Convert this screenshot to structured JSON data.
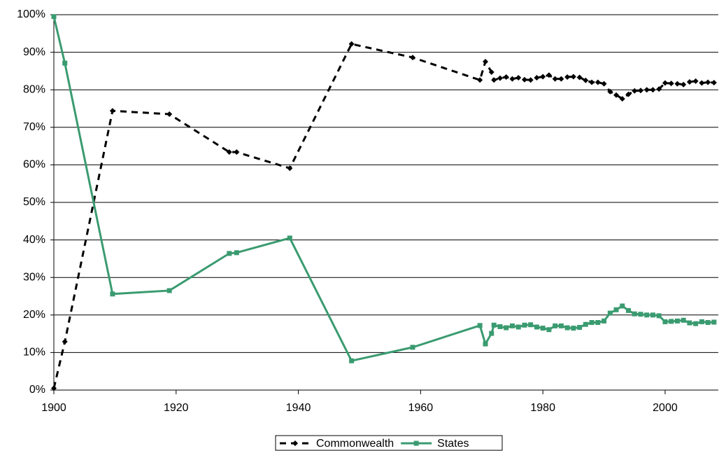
{
  "chart_data": {
    "type": "line",
    "x": [
      1900,
      1901.8,
      1909.6,
      1918.9,
      1928.7,
      1929.9,
      1938.6,
      1948.7,
      1958.7,
      1969.7,
      1970.6,
      1971.6,
      1972,
      1973,
      1974,
      1975,
      1976,
      1977,
      1978,
      1979,
      1980,
      1981,
      1982,
      1983,
      1984,
      1985,
      1986,
      1987,
      1988,
      1989,
      1990,
      1991,
      1992,
      1993,
      1994,
      1995,
      1996,
      1997,
      1998,
      1999,
      2000,
      2001,
      2002,
      2003,
      2004,
      2005,
      2006,
      2007,
      2008
    ],
    "series": [
      {
        "name": "Commonwealth",
        "color": "#000000",
        "line_style": "dashed",
        "marker": "diamond",
        "values": [
          0.5,
          12.9,
          74.4,
          73.5,
          63.4,
          63.4,
          59.1,
          92.2,
          88.6,
          82.6,
          87.5,
          84.7,
          82.6,
          83.1,
          83.4,
          82.9,
          83.2,
          82.7,
          82.6,
          83.2,
          83.5,
          83.9,
          82.9,
          82.9,
          83.4,
          83.5,
          83.3,
          82.5,
          82.0,
          82.0,
          81.6,
          79.5,
          78.6,
          77.6,
          78.8,
          79.7,
          79.8,
          80.0,
          80.0,
          80.2,
          81.8,
          81.7,
          81.6,
          81.4,
          82.1,
          82.3,
          81.8,
          82.0,
          81.9
        ]
      },
      {
        "name": "States",
        "color": "#3a9b70",
        "line_style": "solid",
        "marker": "square",
        "values": [
          99.5,
          87.1,
          25.6,
          26.5,
          36.4,
          36.6,
          40.5,
          7.8,
          11.4,
          17.2,
          12.3,
          15.1,
          17.3,
          16.9,
          16.6,
          17.1,
          16.8,
          17.3,
          17.4,
          16.8,
          16.5,
          16.1,
          17.1,
          17.1,
          16.6,
          16.5,
          16.7,
          17.5,
          18.0,
          18.0,
          18.4,
          20.5,
          21.4,
          22.4,
          21.2,
          20.3,
          20.2,
          20.0,
          20.0,
          19.8,
          18.2,
          18.3,
          18.4,
          18.6,
          17.9,
          17.7,
          18.2,
          18.0,
          18.1
        ]
      }
    ],
    "xlim": [
      1900,
      2008.7
    ],
    "xticks": [
      1900,
      1920,
      1940,
      1960,
      1980,
      2000
    ],
    "ylim": [
      0,
      100
    ],
    "yticks": [
      {
        "value": 0,
        "label": "0%"
      },
      {
        "value": 10,
        "label": "10%"
      },
      {
        "value": 20,
        "label": "20%"
      },
      {
        "value": 30,
        "label": "30%"
      },
      {
        "value": 40,
        "label": "40%"
      },
      {
        "value": 50,
        "label": "50%"
      },
      {
        "value": 60,
        "label": "60%"
      },
      {
        "value": 70,
        "label": "70%"
      },
      {
        "value": 80,
        "label": "80%"
      },
      {
        "value": 90,
        "label": "90%"
      },
      {
        "value": 100,
        "label": "100%"
      }
    ],
    "grid": true,
    "legend": "bottom"
  }
}
